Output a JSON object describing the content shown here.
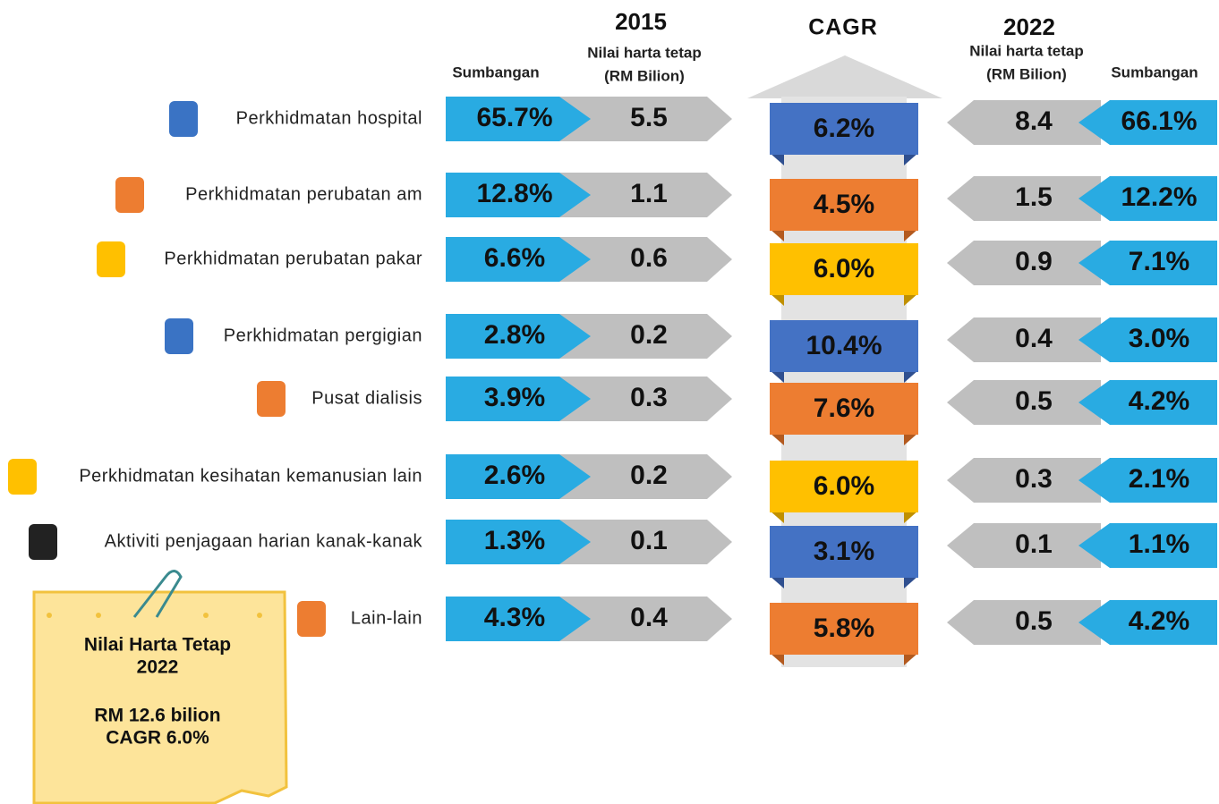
{
  "headers": {
    "year_2015": "2015",
    "value_2015_line1": "Nilai harta tetap",
    "value_2015_line2": "(RM Bilion)",
    "share_2015": "Sumbangan",
    "cagr": "CAGR",
    "year_2022": "2022",
    "value_2022_line1": "Nilai harta tetap",
    "value_2022_line2": "(RM Bilion)",
    "share_2022": "Sumbangan"
  },
  "rows": [
    {
      "label": "Perkhidmatan hospital",
      "share_2015": "65.7%",
      "value_2015": "5.5",
      "cagr": "6.2%",
      "value_2022": "8.4",
      "share_2022": "66.1%",
      "color": "#4472c4"
    },
    {
      "label": "Perkhidmatan perubatan am",
      "share_2015": "12.8%",
      "value_2015": "1.1",
      "cagr": "4.5%",
      "value_2022": "1.5",
      "share_2022": "12.2%",
      "color": "#ed7d31"
    },
    {
      "label": "Perkhidmatan perubatan pakar",
      "share_2015": "6.6%",
      "value_2015": "0.6",
      "cagr": "6.0%",
      "value_2022": "0.9",
      "share_2022": "7.1%",
      "color": "#ffc000"
    },
    {
      "label": "Perkhidmatan pergigian",
      "share_2015": "2.8%",
      "value_2015": "0.2",
      "cagr": "10.4%",
      "value_2022": "0.4",
      "share_2022": "3.0%",
      "color": "#4472c4"
    },
    {
      "label": "Pusat dialisis",
      "share_2015": "3.9%",
      "value_2015": "0.3",
      "cagr": "7.6%",
      "value_2022": "0.5",
      "share_2022": "4.2%",
      "color": "#ed7d31"
    },
    {
      "label": "Perkhidmatan kesihatan kemanusian lain",
      "share_2015": "2.6%",
      "value_2015": "0.2",
      "cagr": "6.0%",
      "value_2022": "0.3",
      "share_2022": "2.1%",
      "color": "#ffc000"
    },
    {
      "label": "Aktiviti penjagaan harian kanak-kanak",
      "share_2015": "1.3%",
      "value_2015": "0.1",
      "cagr": "3.1%",
      "value_2022": "0.1",
      "share_2022": "1.1%",
      "color": "#4472c4"
    },
    {
      "label": "Lain-lain",
      "share_2015": "4.3%",
      "value_2015": "0.4",
      "cagr": "5.8%",
      "value_2022": "0.5",
      "share_2022": "4.2%",
      "color": "#ed7d31"
    }
  ],
  "note": {
    "lines": [
      "Nilai Harta Tetap",
      "2022",
      "RM 12.6 bilion",
      "CAGR 6.0%"
    ]
  }
}
